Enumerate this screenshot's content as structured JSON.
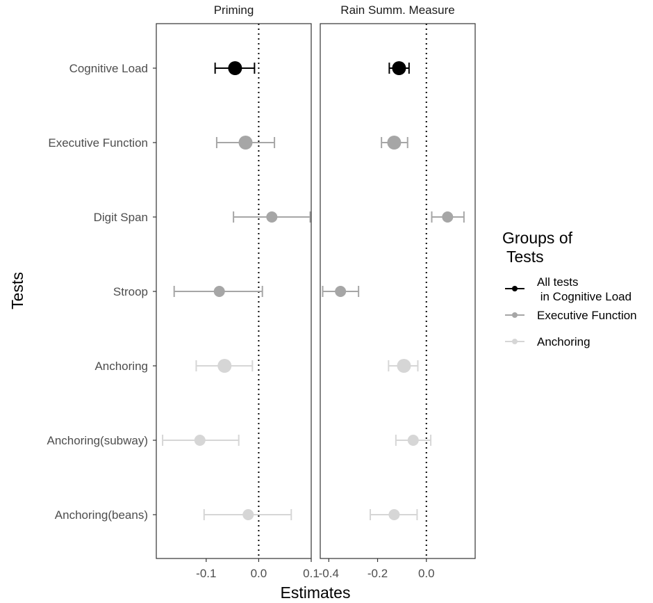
{
  "chart_data": {
    "type": "scatter",
    "subtype": "forest-plot",
    "xlabel": "Estimates",
    "ylabel": "Tests",
    "categories": [
      "Cognitive Load",
      "Executive Function",
      "Digit Span",
      "Stroop",
      "Anchoring",
      "Anchoring(subway)",
      "Anchoring(beans)"
    ],
    "panels": [
      {
        "title": "Priming",
        "xlim": [
          -0.195,
          0.1
        ],
        "xticks": [
          -0.1,
          0.0,
          0.1
        ],
        "xtick_labels": [
          "-0.1",
          "0.0",
          "0.1"
        ],
        "reference_line": 0.0,
        "points": [
          {
            "category": "Cognitive Load",
            "estimate": -0.045,
            "low": -0.083,
            "high": -0.008,
            "group": "All tests in Cognitive Load",
            "size": "large"
          },
          {
            "category": "Executive Function",
            "estimate": -0.025,
            "low": -0.08,
            "high": 0.03,
            "group": "Executive Function",
            "size": "large"
          },
          {
            "category": "Digit Span",
            "estimate": 0.025,
            "low": -0.048,
            "high": 0.098,
            "group": "Executive Function",
            "size": "small"
          },
          {
            "category": "Stroop",
            "estimate": -0.075,
            "low": -0.161,
            "high": 0.007,
            "group": "Executive Function",
            "size": "small"
          },
          {
            "category": "Anchoring",
            "estimate": -0.065,
            "low": -0.119,
            "high": -0.012,
            "group": "Anchoring",
            "size": "large"
          },
          {
            "category": "Anchoring(subway)",
            "estimate": -0.112,
            "low": -0.183,
            "high": -0.038,
            "group": "Anchoring",
            "size": "small"
          },
          {
            "category": "Anchoring(beans)",
            "estimate": -0.02,
            "low": -0.104,
            "high": 0.062,
            "group": "Anchoring",
            "size": "small"
          }
        ]
      },
      {
        "title": "Rain Summ. Measure",
        "xlim": [
          -0.435,
          0.2
        ],
        "xticks": [
          -0.4,
          -0.2,
          0.0
        ],
        "xtick_labels": [
          "-0.4",
          "-0.2",
          "0.0"
        ],
        "reference_line": 0.0,
        "points": [
          {
            "category": "Cognitive Load",
            "estimate": -0.112,
            "low": -0.152,
            "high": -0.071,
            "group": "All tests in Cognitive Load",
            "size": "large"
          },
          {
            "category": "Executive Function",
            "estimate": -0.132,
            "low": -0.184,
            "high": -0.077,
            "group": "Executive Function",
            "size": "large"
          },
          {
            "category": "Digit Span",
            "estimate": 0.087,
            "low": 0.022,
            "high": 0.154,
            "group": "Executive Function",
            "size": "small"
          },
          {
            "category": "Stroop",
            "estimate": -0.352,
            "low": -0.425,
            "high": -0.278,
            "group": "Executive Function",
            "size": "small"
          },
          {
            "category": "Anchoring",
            "estimate": -0.092,
            "low": -0.155,
            "high": -0.035,
            "group": "Anchoring",
            "size": "large"
          },
          {
            "category": "Anchoring(subway)",
            "estimate": -0.054,
            "low": -0.125,
            "high": 0.018,
            "group": "Anchoring",
            "size": "small"
          },
          {
            "category": "Anchoring(beans)",
            "estimate": -0.132,
            "low": -0.23,
            "high": -0.038,
            "group": "Anchoring",
            "size": "small"
          }
        ]
      }
    ],
    "legend": {
      "title_lines": [
        "Groups of",
        " Tests"
      ],
      "placement": "right",
      "entries": [
        {
          "group": "All tests in Cognitive Load",
          "label_lines": [
            "All tests",
            " in Cognitive Load"
          ],
          "color": "#000000"
        },
        {
          "group": "Executive Function",
          "label_lines": [
            "Executive Function"
          ],
          "color": "#a6a6a6"
        },
        {
          "group": "Anchoring",
          "label_lines": [
            "Anchoring"
          ],
          "color": "#d6d6d6"
        }
      ]
    },
    "grid": false
  }
}
